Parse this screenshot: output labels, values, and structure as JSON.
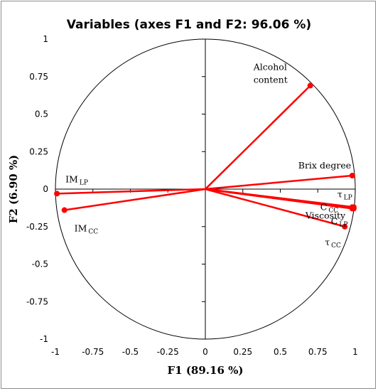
{
  "chart_data": {
    "type": "scatter",
    "subtype": "correlation-circle",
    "title": "Variables (axes F1 and F2: 96.06 %)",
    "xlabel": "F1 (89.16 %)",
    "ylabel": "F2 (6.90 %)",
    "xlim": [
      -1,
      1
    ],
    "ylim": [
      -1,
      1
    ],
    "xticks": [
      "-1",
      "-0.75",
      "-0.5",
      "-0.25",
      "0",
      "0.25",
      "0.5",
      "0.75",
      "1"
    ],
    "yticks": [
      "1",
      "0.75",
      "0.5",
      "0.25",
      "0",
      "-0.25",
      "-0.5",
      "-0.75",
      "-1"
    ],
    "grid": false,
    "unit_circle": true,
    "colors": {
      "vectors": "#ff0000",
      "circle": "#000000",
      "axes": "#000000"
    },
    "variables": [
      {
        "label": "Alcohol content",
        "label_lines": [
          "Alcohol",
          "content"
        ],
        "x": 0.7,
        "y": 0.69
      },
      {
        "label": "Brix degree",
        "label_lines": [
          "Brix degree"
        ],
        "x": 0.98,
        "y": 0.09
      },
      {
        "label": "τ LP",
        "main": "τ",
        "sub": "LP",
        "x": 0.99,
        "y": -0.12
      },
      {
        "label": "C CC",
        "main": "C",
        "sub": "CC",
        "x": 0.98,
        "y": -0.12
      },
      {
        "label": "Viscosity",
        "label_lines": [
          "Viscosity"
        ],
        "x": 0.99,
        "y": -0.13
      },
      {
        "label": "C LP",
        "main": "C",
        "sub": "LP",
        "x": 0.98,
        "y": -0.13
      },
      {
        "label": "τ CC",
        "main": "τ",
        "sub": "CC",
        "x": 0.93,
        "y": -0.25
      },
      {
        "label": "IM LP",
        "main": "IM",
        "sub": "LP",
        "x": -0.99,
        "y": -0.03
      },
      {
        "label": "IM CC",
        "main": "IM",
        "sub": "CC",
        "x": -0.94,
        "y": -0.14
      }
    ]
  }
}
